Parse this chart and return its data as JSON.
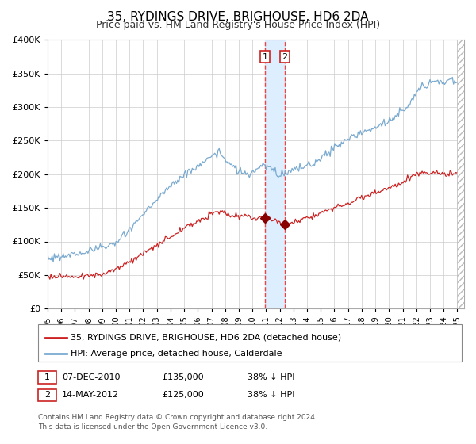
{
  "title": "35, RYDINGS DRIVE, BRIGHOUSE, HD6 2DA",
  "subtitle": "Price paid vs. HM Land Registry's House Price Index (HPI)",
  "legend_line1": "35, RYDINGS DRIVE, BRIGHOUSE, HD6 2DA (detached house)",
  "legend_line2": "HPI: Average price, detached house, Calderdale",
  "table_rows": [
    {
      "num": "1",
      "date": "07-DEC-2010",
      "price": "£135,000",
      "note": "38% ↓ HPI"
    },
    {
      "num": "2",
      "date": "14-MAY-2012",
      "price": "£125,000",
      "note": "38% ↓ HPI"
    }
  ],
  "footnote": "Contains HM Land Registry data © Crown copyright and database right 2024.\nThis data is licensed under the Open Government Licence v3.0.",
  "transaction1_x": 2010.92,
  "transaction1_y": 135000,
  "transaction2_x": 2012.37,
  "transaction2_y": 125000,
  "vline1_x": 2010.92,
  "vline2_x": 2012.37,
  "hpi_color": "#7aaad0",
  "price_color": "#cc2222",
  "marker_color": "#880000",
  "vband_color": "#ddeeff",
  "vline_color": "#ee4444",
  "ylim": [
    0,
    400000
  ],
  "xlim": [
    1995,
    2025.5
  ],
  "yticks": [
    0,
    50000,
    100000,
    150000,
    200000,
    250000,
    300000,
    350000,
    400000
  ],
  "xticks": [
    1995,
    1996,
    1997,
    1998,
    1999,
    2000,
    2001,
    2002,
    2003,
    2004,
    2005,
    2006,
    2007,
    2008,
    2009,
    2010,
    2011,
    2012,
    2013,
    2014,
    2015,
    2016,
    2017,
    2018,
    2019,
    2020,
    2021,
    2022,
    2023,
    2024,
    2025
  ]
}
